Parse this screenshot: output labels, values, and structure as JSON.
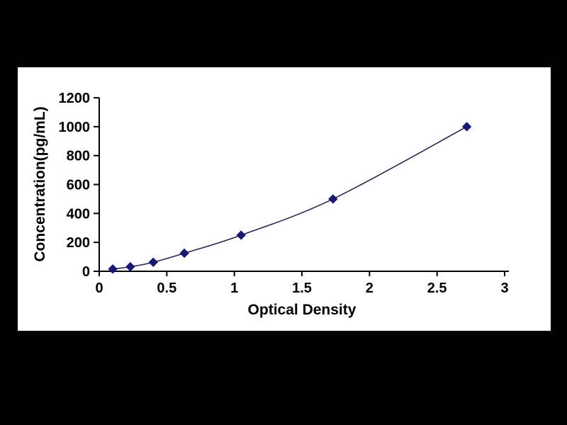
{
  "page": {
    "background": "#000000"
  },
  "chart_data": {
    "type": "line",
    "title": "",
    "xlabel": "Optical Density",
    "ylabel": "Concentration(pg/mL)",
    "x": [
      0.1,
      0.23,
      0.4,
      0.63,
      1.05,
      1.73,
      2.72
    ],
    "y": [
      15.6,
      31.2,
      62.5,
      125,
      250,
      500,
      1000
    ],
    "xlim": [
      0,
      3
    ],
    "ylim": [
      0,
      1200
    ],
    "x_tick_labels": [
      "0",
      "0.5",
      "1",
      "1.5",
      "2",
      "2.5",
      "3"
    ],
    "y_tick_labels": [
      "0",
      "200",
      "400",
      "600",
      "800",
      "1000",
      "1200"
    ],
    "grid": false,
    "legend_position": "none",
    "marker": "diamond",
    "colors": {
      "line": "#26264f",
      "marker": "#191970",
      "axis": "#000000",
      "text": "#000000",
      "plot_background": "#ffffff",
      "page_background": "#000000"
    }
  }
}
